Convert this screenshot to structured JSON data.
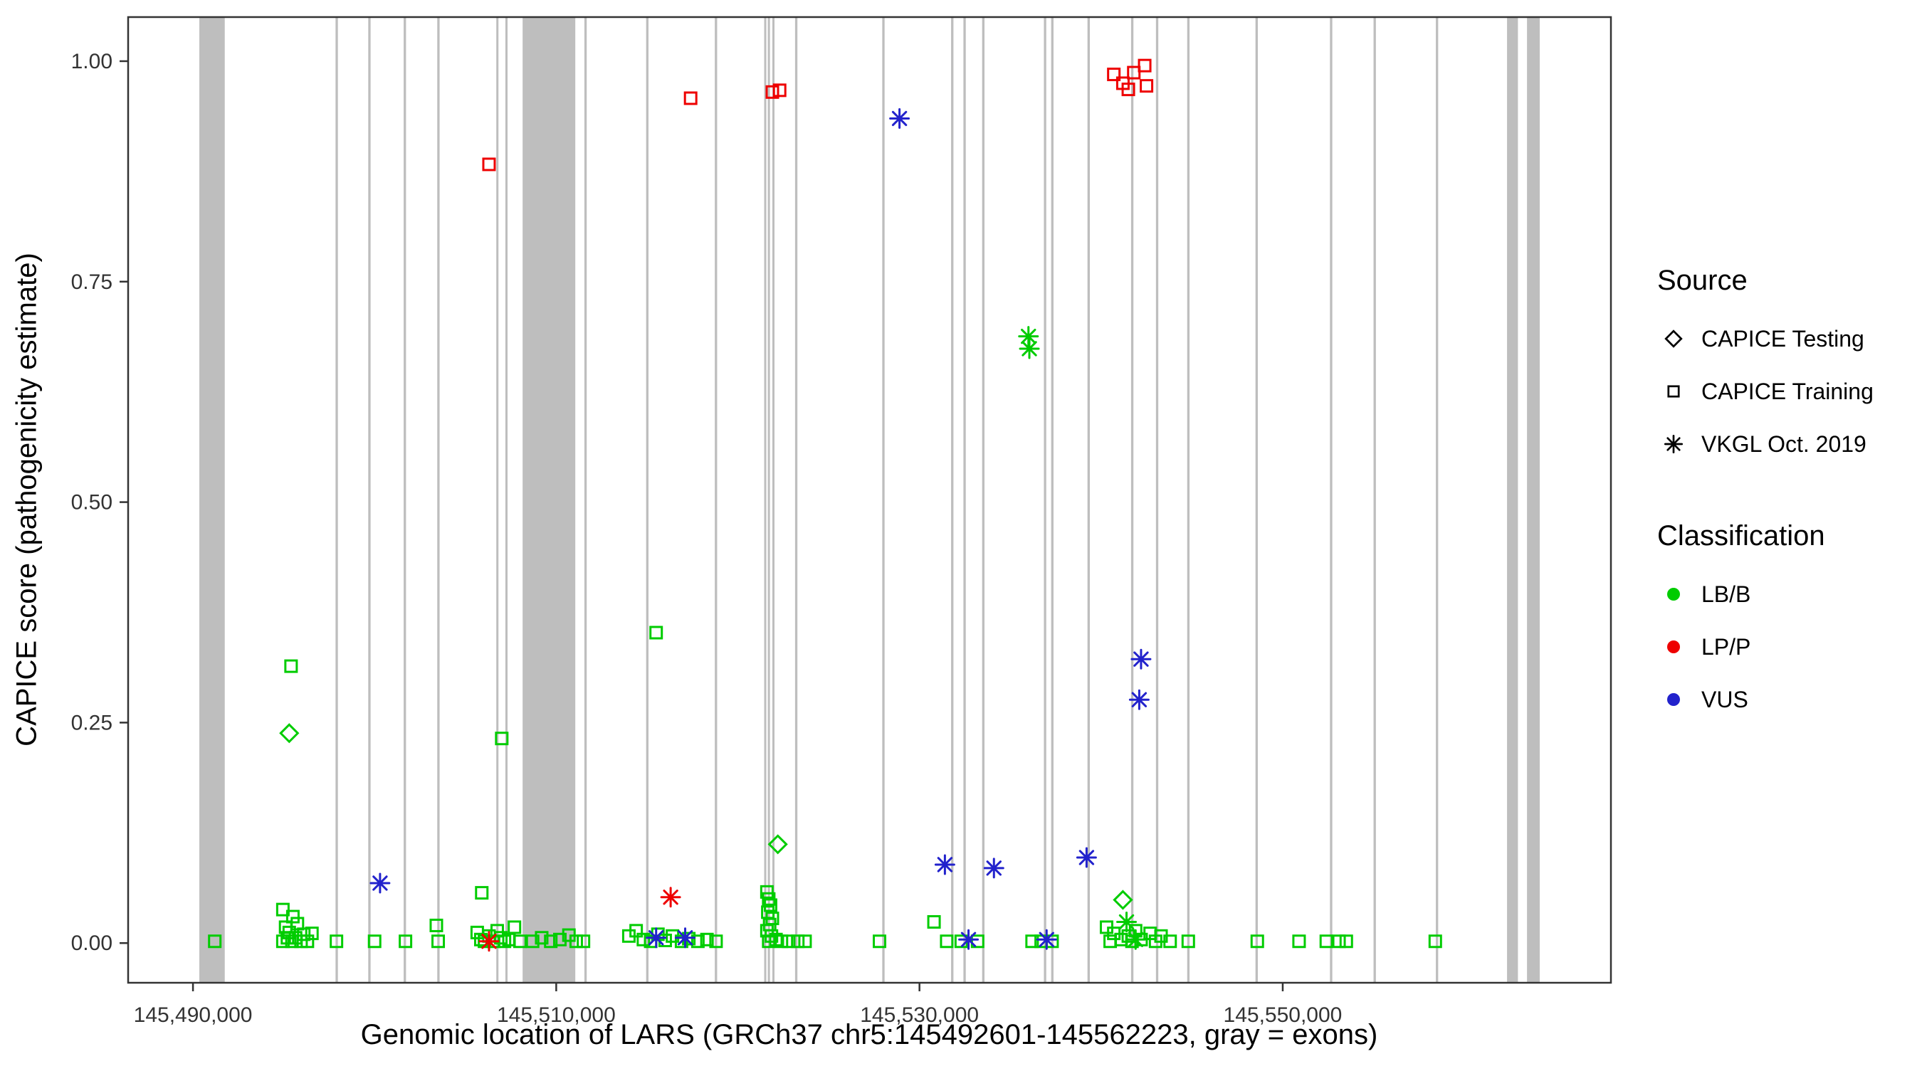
{
  "legend": {
    "source": {
      "title": "Source",
      "items": [
        {
          "label": "CAPICE Testing",
          "shape": "diamond"
        },
        {
          "label": "CAPICE Training",
          "shape": "square"
        },
        {
          "label": "VKGL Oct. 2019",
          "shape": "asterisk"
        }
      ]
    },
    "classification": {
      "title": "Classification",
      "items": [
        {
          "label": "LB/B",
          "color": "#00CC00"
        },
        {
          "label": "LP/P",
          "color": "#EE0000"
        },
        {
          "label": "VUS",
          "color": "#2222CC"
        }
      ]
    }
  },
  "chart_data": {
    "type": "scatter",
    "title": "",
    "xlabel": "Genomic location of LARS (GRCh37 chr5:145492601-145562223, gray = exons)",
    "ylabel": "CAPICE score (pathogenicity estimate)",
    "x_range": [
      145486430,
      145568070
    ],
    "y_range": [
      -0.045,
      1.05
    ],
    "x_ticks": [
      {
        "value": 145490000,
        "label": "145,490,000"
      },
      {
        "value": 145510000,
        "label": "145,510,000"
      },
      {
        "value": 145530000,
        "label": "145,530,000"
      },
      {
        "value": 145550000,
        "label": "145,550,000"
      }
    ],
    "y_ticks": [
      {
        "value": 0,
        "label": "0.00"
      },
      {
        "value": 0.25,
        "label": "0.25"
      },
      {
        "value": 0.5,
        "label": "0.50"
      },
      {
        "value": 0.75,
        "label": "0.75"
      },
      {
        "value": 1,
        "label": "1.00"
      }
    ],
    "exon_color": "#BEBEBE",
    "exons": [
      [
        145490350,
        145491750
      ],
      [
        145497850,
        145497980
      ],
      [
        145499650,
        145499780
      ],
      [
        145501600,
        145501730
      ],
      [
        145503450,
        145503580
      ],
      [
        145506700,
        145506820
      ],
      [
        145507200,
        145507320
      ],
      [
        145508150,
        145511050
      ],
      [
        145511550,
        145511680
      ],
      [
        145514950,
        145515080
      ],
      [
        145518730,
        145518860
      ],
      [
        145521450,
        145521560
      ],
      [
        145521650,
        145521760
      ],
      [
        145521900,
        145522010
      ],
      [
        145523150,
        145523280
      ],
      [
        145527950,
        145528080
      ],
      [
        145531740,
        145531870
      ],
      [
        145532420,
        145532550
      ],
      [
        145533450,
        145533580
      ],
      [
        145536850,
        145536980
      ],
      [
        145537250,
        145537380
      ],
      [
        145539250,
        145539380
      ],
      [
        145541650,
        145541780
      ],
      [
        145543020,
        145543150
      ],
      [
        145544740,
        145544870
      ],
      [
        145548500,
        145548630
      ],
      [
        145552600,
        145552730
      ],
      [
        145555000,
        145555130
      ],
      [
        145558430,
        145558560
      ],
      [
        145562350,
        145562950
      ],
      [
        145563450,
        145564150
      ]
    ],
    "series": [
      {
        "name": "CAPICE Training / LB/B",
        "source": "CAPICE Training",
        "classification": "LB/B",
        "shape": "square",
        "color": "#00CC00",
        "points": [
          [
            145495400,
            0.314
          ],
          [
            145515500,
            0.352
          ],
          [
            145507000,
            0.232
          ],
          [
            145505900,
            0.057
          ],
          [
            145494950,
            0.038
          ],
          [
            145495500,
            0.03
          ],
          [
            145495100,
            0.018
          ],
          [
            145495750,
            0.022
          ],
          [
            145495300,
            0.012
          ],
          [
            145496100,
            0.01
          ],
          [
            145496550,
            0.011
          ],
          [
            145494950,
            0.002
          ],
          [
            145495450,
            0.002
          ],
          [
            145495950,
            0.002
          ],
          [
            145496300,
            0.002
          ],
          [
            145495200,
            0.006
          ],
          [
            145495650,
            0.006
          ],
          [
            145491200,
            0.002
          ],
          [
            145497900,
            0.002
          ],
          [
            145500000,
            0.002
          ],
          [
            145501700,
            0.002
          ],
          [
            145503400,
            0.02
          ],
          [
            145503500,
            0.002
          ],
          [
            145505650,
            0.012
          ],
          [
            145505850,
            0.004
          ],
          [
            145506050,
            0.002
          ],
          [
            145506300,
            0.008
          ],
          [
            145506550,
            0.002
          ],
          [
            145506750,
            0.014
          ],
          [
            145506950,
            0.006
          ],
          [
            145507150,
            0.002
          ],
          [
            145507400,
            0.004
          ],
          [
            145507700,
            0.018
          ],
          [
            145508000,
            0.002
          ],
          [
            145508700,
            0.002
          ],
          [
            145509200,
            0.006
          ],
          [
            145509700,
            0.002
          ],
          [
            145510200,
            0.004
          ],
          [
            145510700,
            0.009
          ],
          [
            145511100,
            0.002
          ],
          [
            145511500,
            0.002
          ],
          [
            145514000,
            0.008
          ],
          [
            145514400,
            0.014
          ],
          [
            145514800,
            0.004
          ],
          [
            145515200,
            0.002
          ],
          [
            145515600,
            0.01
          ],
          [
            145516000,
            0.003
          ],
          [
            145516400,
            0.008
          ],
          [
            145516900,
            0.002
          ],
          [
            145517300,
            0.005
          ],
          [
            145517800,
            0.002
          ],
          [
            145518300,
            0.004
          ],
          [
            145518800,
            0.002
          ],
          [
            145521600,
            0.058
          ],
          [
            145521700,
            0.05
          ],
          [
            145521800,
            0.043
          ],
          [
            145521650,
            0.035
          ],
          [
            145521900,
            0.028
          ],
          [
            145521750,
            0.021
          ],
          [
            145521600,
            0.014
          ],
          [
            145521850,
            0.008
          ],
          [
            145522100,
            0.004
          ],
          [
            145521700,
            0.002
          ],
          [
            145522400,
            0.002
          ],
          [
            145522800,
            0.002
          ],
          [
            145523300,
            0.002
          ],
          [
            145523700,
            0.002
          ],
          [
            145527800,
            0.002
          ],
          [
            145530800,
            0.024
          ],
          [
            145531500,
            0.002
          ],
          [
            145532300,
            0.002
          ],
          [
            145533200,
            0.002
          ],
          [
            145536200,
            0.002
          ],
          [
            145536700,
            0.002
          ],
          [
            145537300,
            0.002
          ],
          [
            145540300,
            0.018
          ],
          [
            145540700,
            0.011
          ],
          [
            145541100,
            0.004
          ],
          [
            145541500,
            0.008
          ],
          [
            145541900,
            0.014
          ],
          [
            145542200,
            0.004
          ],
          [
            145542700,
            0.011
          ],
          [
            145543000,
            0.002
          ],
          [
            145540500,
            0.002
          ],
          [
            145541700,
            0.002
          ],
          [
            145543300,
            0.008
          ],
          [
            145543800,
            0.002
          ],
          [
            145544800,
            0.002
          ],
          [
            145548600,
            0.002
          ],
          [
            145550900,
            0.002
          ],
          [
            145552400,
            0.002
          ],
          [
            145553100,
            0.002
          ],
          [
            145553500,
            0.002
          ],
          [
            145558400,
            0.002
          ]
        ]
      },
      {
        "name": "CAPICE Testing / LB/B",
        "source": "CAPICE Testing",
        "classification": "LB/B",
        "shape": "diamond",
        "color": "#00CC00",
        "points": [
          [
            145495300,
            0.238
          ],
          [
            145522200,
            0.112
          ],
          [
            145541200,
            0.049
          ]
        ]
      },
      {
        "name": "VKGL Oct. 2019 / LB/B",
        "source": "VKGL Oct. 2019",
        "classification": "LB/B",
        "shape": "asterisk",
        "color": "#00CC00",
        "points": [
          [
            145536000,
            0.688
          ],
          [
            145536050,
            0.674
          ],
          [
            145541400,
            0.024
          ],
          [
            145541900,
            0.004
          ]
        ]
      },
      {
        "name": "VKGL Oct. 2019 / VUS",
        "source": "VKGL Oct. 2019",
        "classification": "VUS",
        "shape": "asterisk",
        "color": "#2222CC",
        "points": [
          [
            145528900,
            0.935
          ],
          [
            145542200,
            0.322
          ],
          [
            145542100,
            0.276
          ],
          [
            145500300,
            0.068
          ],
          [
            145531400,
            0.089
          ],
          [
            145534100,
            0.085
          ],
          [
            145539200,
            0.097
          ],
          [
            145515500,
            0.006
          ],
          [
            145517100,
            0.006
          ],
          [
            145532700,
            0.004
          ],
          [
            145537000,
            0.004
          ]
        ]
      },
      {
        "name": "CAPICE Training / LP/P",
        "source": "CAPICE Training",
        "classification": "LP/P",
        "shape": "square",
        "color": "#EE0000",
        "points": [
          [
            145506300,
            0.883
          ],
          [
            145517400,
            0.958
          ],
          [
            145521900,
            0.965
          ],
          [
            145522300,
            0.967
          ],
          [
            145540700,
            0.985
          ],
          [
            145541200,
            0.975
          ],
          [
            145541800,
            0.987
          ],
          [
            145542400,
            0.995
          ],
          [
            145541500,
            0.968
          ],
          [
            145542500,
            0.972
          ]
        ]
      },
      {
        "name": "VKGL Oct. 2019 / LP/P",
        "source": "VKGL Oct. 2019",
        "classification": "LP/P",
        "shape": "asterisk",
        "color": "#EE0000",
        "points": [
          [
            145516300,
            0.052
          ],
          [
            145506300,
            0.002
          ]
        ]
      }
    ]
  }
}
